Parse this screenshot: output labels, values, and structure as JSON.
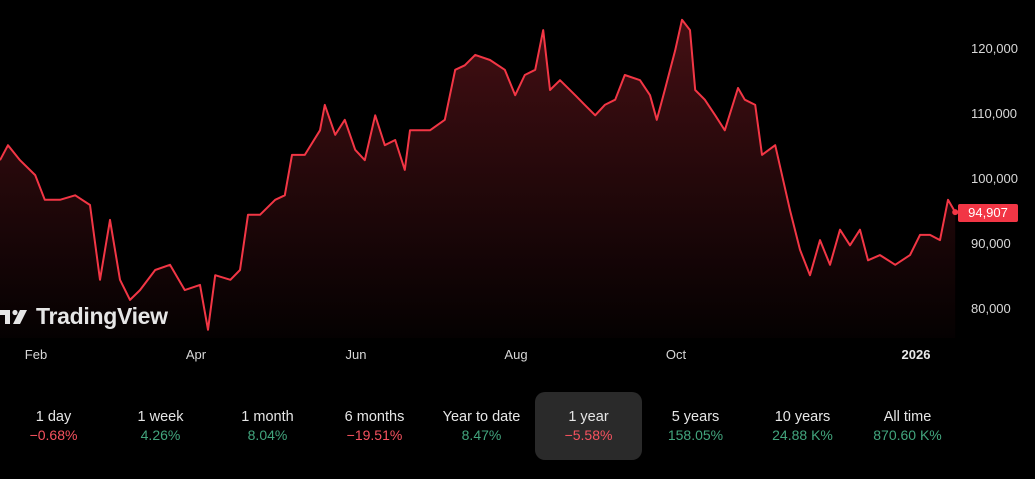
{
  "chart_data": {
    "type": "area",
    "title": "",
    "xlabel": "",
    "ylabel": "",
    "x_unit": "months since Jan 1 2025",
    "xlim": [
      0.55,
      12.49
    ],
    "ylim": [
      75000,
      125000
    ],
    "y_ticks": [
      {
        "value": 120000,
        "label": "120,000"
      },
      {
        "value": 110000,
        "label": "110,000"
      },
      {
        "value": 100000,
        "label": "100,000"
      },
      {
        "value": 90000,
        "label": "90,000"
      },
      {
        "value": 80000,
        "label": "80,000"
      }
    ],
    "x_ticks": [
      {
        "value": 1,
        "label": "Feb",
        "bold": false
      },
      {
        "value": 3,
        "label": "Apr",
        "bold": false
      },
      {
        "value": 5,
        "label": "Jun",
        "bold": false
      },
      {
        "value": 7,
        "label": "Aug",
        "bold": false
      },
      {
        "value": 9,
        "label": "Oct",
        "bold": false
      },
      {
        "value": 12,
        "label": "2026",
        "bold": true
      }
    ],
    "last_price_label": "94,907",
    "line_color": "#f23645",
    "series": [
      {
        "name": "Price",
        "points": [
          [
            0.55,
            102900
          ],
          [
            0.65,
            105200
          ],
          [
            0.8,
            102900
          ],
          [
            0.99,
            100600
          ],
          [
            1.11,
            96800
          ],
          [
            1.3,
            96800
          ],
          [
            1.49,
            97500
          ],
          [
            1.675,
            96000
          ],
          [
            1.8,
            84500
          ],
          [
            1.925,
            93700
          ],
          [
            2.05,
            84500
          ],
          [
            2.175,
            81400
          ],
          [
            2.3,
            82900
          ],
          [
            2.49,
            86000
          ],
          [
            2.675,
            86800
          ],
          [
            2.86,
            82900
          ],
          [
            3.05,
            83700
          ],
          [
            3.15,
            76800
          ],
          [
            3.24,
            85200
          ],
          [
            3.43,
            84500
          ],
          [
            3.55,
            86000
          ],
          [
            3.65,
            94500
          ],
          [
            3.8,
            94500
          ],
          [
            3.99,
            96800
          ],
          [
            4.11,
            97500
          ],
          [
            4.2,
            103700
          ],
          [
            4.36,
            103700
          ],
          [
            4.55,
            107500
          ],
          [
            4.61,
            111400
          ],
          [
            4.74,
            106800
          ],
          [
            4.86,
            109100
          ],
          [
            4.99,
            104500
          ],
          [
            5.11,
            102900
          ],
          [
            5.24,
            109800
          ],
          [
            5.36,
            105200
          ],
          [
            5.49,
            106000
          ],
          [
            5.61,
            101400
          ],
          [
            5.675,
            107500
          ],
          [
            5.8,
            107500
          ],
          [
            5.925,
            107500
          ],
          [
            6.11,
            109100
          ],
          [
            6.24,
            116800
          ],
          [
            6.36,
            117500
          ],
          [
            6.49,
            119100
          ],
          [
            6.675,
            118300
          ],
          [
            6.86,
            116800
          ],
          [
            6.99,
            112900
          ],
          [
            7.11,
            116000
          ],
          [
            7.24,
            116800
          ],
          [
            7.34,
            122900
          ],
          [
            7.425,
            113700
          ],
          [
            7.55,
            115200
          ],
          [
            7.74,
            112900
          ],
          [
            7.86,
            111400
          ],
          [
            7.99,
            109800
          ],
          [
            8.11,
            111400
          ],
          [
            8.24,
            112200
          ],
          [
            8.36,
            116000
          ],
          [
            8.55,
            115200
          ],
          [
            8.675,
            112900
          ],
          [
            8.76,
            109100
          ],
          [
            8.86,
            113700
          ],
          [
            8.99,
            119800
          ],
          [
            9.075,
            124500
          ],
          [
            9.175,
            122900
          ],
          [
            9.24,
            113700
          ],
          [
            9.36,
            112200
          ],
          [
            9.49,
            109800
          ],
          [
            9.61,
            107500
          ],
          [
            9.775,
            114000
          ],
          [
            9.86,
            112200
          ],
          [
            9.99,
            111400
          ],
          [
            10.075,
            103700
          ],
          [
            10.24,
            105200
          ],
          [
            10.425,
            95200
          ],
          [
            10.55,
            89100
          ],
          [
            10.675,
            85200
          ],
          [
            10.8,
            90600
          ],
          [
            10.925,
            86800
          ],
          [
            11.05,
            92200
          ],
          [
            11.175,
            89800
          ],
          [
            11.3,
            92200
          ],
          [
            11.4,
            87500
          ],
          [
            11.55,
            88300
          ],
          [
            11.74,
            86800
          ],
          [
            11.925,
            88300
          ],
          [
            12.05,
            91400
          ],
          [
            12.175,
            91400
          ],
          [
            12.3,
            90600
          ],
          [
            12.4,
            96800
          ],
          [
            12.49,
            94907
          ]
        ]
      }
    ]
  },
  "branding": {
    "logo_text": "TradingView"
  },
  "colors": {
    "negative": "#f7525f",
    "positive": "#42a57d",
    "line": "#f23645"
  },
  "periods": [
    {
      "label": "1 day",
      "value": "−0.68%",
      "trend": "neg",
      "selected": false
    },
    {
      "label": "1 week",
      "value": "4.26%",
      "trend": "pos",
      "selected": false
    },
    {
      "label": "1 month",
      "value": "8.04%",
      "trend": "pos",
      "selected": false
    },
    {
      "label": "6 months",
      "value": "−19.51%",
      "trend": "neg",
      "selected": false
    },
    {
      "label": "Year to date",
      "value": "8.47%",
      "trend": "pos",
      "selected": false
    },
    {
      "label": "1 year",
      "value": "−5.58%",
      "trend": "neg",
      "selected": true
    },
    {
      "label": "5 years",
      "value": "158.05%",
      "trend": "pos",
      "selected": false
    },
    {
      "label": "10 years",
      "value": "24.88 K%",
      "trend": "pos",
      "selected": false
    },
    {
      "label": "All time",
      "value": "870.60 K%",
      "trend": "pos",
      "selected": false
    }
  ]
}
